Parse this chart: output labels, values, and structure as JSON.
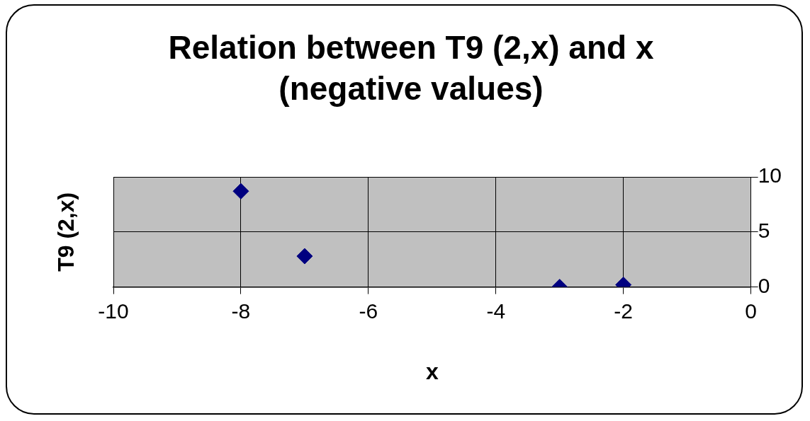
{
  "chart_data": {
    "type": "scatter",
    "title": "Relation between T9 (2,x) and x (negative values)",
    "xlabel": "x",
    "ylabel": "T9 (2,x)",
    "x": [
      -8,
      -7,
      -3,
      -2
    ],
    "series": [
      {
        "color": "#000080",
        "values": [
          8.7,
          2.8,
          0,
          0.2
        ]
      }
    ],
    "xlim": [
      -10,
      0
    ],
    "xticks": [
      -10,
      -8,
      -6,
      -4,
      -2,
      0
    ],
    "ylim": [
      0,
      10
    ],
    "yticks": [
      0,
      5,
      10
    ],
    "grid": true,
    "marker": "diamond",
    "legend": false
  }
}
